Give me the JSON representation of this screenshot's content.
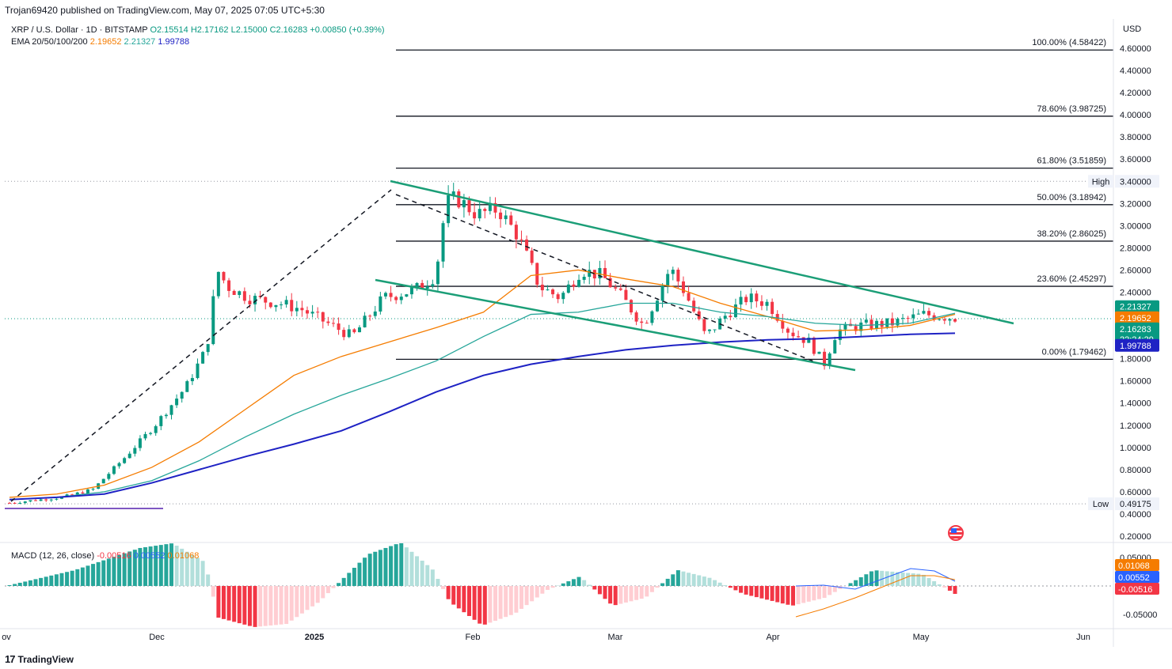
{
  "header": {
    "publisher": "Trojan69420 published on TradingView.com, May 07, 2025 07:05 UTC+5:30",
    "symbol": "XRP / U.S. Dollar · 1D · BITSTAMP",
    "open": "O2.15514",
    "high": "H2.17162",
    "low": "L2.15000",
    "close": "C2.16283",
    "change": "+0.00850 (+0.39%)",
    "ema_label": "EMA 20/50/100/200",
    "ema20": "2.19652",
    "ema50": "2.21327",
    "ema100": "1.99788",
    "currency": "USD"
  },
  "macd": {
    "label": "MACD (12, 26, close)",
    "hist": "-0.00516",
    "macd": "0.00552",
    "signal": "0.01068"
  },
  "branding": {
    "logo_text": "TradingView"
  },
  "colors": {
    "up": "#089981",
    "down": "#f23645",
    "ema20": "#f57c00",
    "ema50": "#26a69a",
    "ema100": "#089981",
    "ema200": "#1e22c4",
    "channel": "#1b9e77",
    "macd_line": "#2962ff",
    "signal_line": "#f57c00"
  },
  "chart_data": {
    "type": "candlestick",
    "x_axis": {
      "tick_labels": [
        "ov",
        "Dec",
        "2025",
        "Feb",
        "Mar",
        "Apr",
        "May",
        "Jun"
      ]
    },
    "y_axis": {
      "tick_labels": [
        "4.60000",
        "4.40000",
        "4.20000",
        "4.00000",
        "3.80000",
        "3.60000",
        "3.40000",
        "3.20000",
        "3.00000",
        "2.80000",
        "2.60000",
        "2.40000",
        "2.20000",
        "2.00000",
        "1.80000",
        "1.60000",
        "1.40000",
        "1.20000",
        "1.00000",
        "0.80000",
        "0.60000",
        "0.40000",
        "0.20000"
      ],
      "range": [
        0.15,
        4.7
      ]
    },
    "fibonacci": [
      {
        "label": "100.00% (4.58422)",
        "value": 4.58422
      },
      {
        "label": "78.60% (3.98725)",
        "value": 3.98725
      },
      {
        "label": "61.80% (3.51859)",
        "value": 3.51859
      },
      {
        "label": "50.00% (3.18942)",
        "value": 3.18942
      },
      {
        "label": "38.20% (2.86025)",
        "value": 2.86025
      },
      {
        "label": "23.60% (2.45297)",
        "value": 2.45297
      },
      {
        "label": "0.00% (1.79462)",
        "value": 1.79462
      }
    ],
    "price_badges": [
      {
        "label": "2.21327",
        "value": 2.27,
        "color": "#089981"
      },
      {
        "label": "2.19652",
        "value": 2.17,
        "color": "#f57c00"
      },
      {
        "label": "2.16283",
        "value": 2.07,
        "color": "#089981",
        "sub": "22:24:29"
      },
      {
        "label": "1.99788",
        "value": 1.92,
        "color": "#1e22c4"
      }
    ],
    "high_marker": {
      "tag": "High",
      "label": "3.40000",
      "value": 3.4
    },
    "low_marker": {
      "tag": "Low",
      "label": "0.49175",
      "value": 0.49175
    },
    "macd_axis": {
      "tick_labels": [
        "0.05000",
        "-0.05000"
      ],
      "badges": [
        {
          "label": "0.01068",
          "color": "#f57c00"
        },
        {
          "label": "0.00552",
          "color": "#2962ff"
        },
        {
          "label": "-0.00516",
          "color": "#f23645"
        }
      ]
    },
    "ema20": [
      [
        0,
        0.55
      ],
      [
        20,
        0.58
      ],
      [
        40,
        0.66
      ],
      [
        60,
        0.82
      ],
      [
        80,
        1.05
      ],
      [
        100,
        1.35
      ],
      [
        120,
        1.65
      ],
      [
        140,
        1.82
      ],
      [
        160,
        1.95
      ],
      [
        180,
        2.08
      ],
      [
        200,
        2.22
      ],
      [
        220,
        2.55
      ],
      [
        240,
        2.6
      ],
      [
        260,
        2.52
      ],
      [
        280,
        2.45
      ],
      [
        300,
        2.3
      ],
      [
        320,
        2.18
      ],
      [
        340,
        2.05
      ],
      [
        360,
        2.06
      ],
      [
        380,
        2.1
      ],
      [
        399,
        2.2
      ]
    ],
    "ema50": [
      [
        0,
        0.53
      ],
      [
        20,
        0.55
      ],
      [
        40,
        0.6
      ],
      [
        60,
        0.7
      ],
      [
        80,
        0.88
      ],
      [
        100,
        1.1
      ],
      [
        120,
        1.3
      ],
      [
        140,
        1.47
      ],
      [
        160,
        1.62
      ],
      [
        180,
        1.78
      ],
      [
        200,
        2.0
      ],
      [
        220,
        2.2
      ],
      [
        240,
        2.22
      ],
      [
        260,
        2.3
      ],
      [
        280,
        2.3
      ],
      [
        300,
        2.22
      ],
      [
        320,
        2.18
      ],
      [
        340,
        2.12
      ],
      [
        360,
        2.1
      ],
      [
        380,
        2.12
      ],
      [
        399,
        2.21
      ]
    ],
    "ema200": [
      [
        0,
        0.53
      ],
      [
        20,
        0.55
      ],
      [
        40,
        0.58
      ],
      [
        60,
        0.68
      ],
      [
        80,
        0.8
      ],
      [
        100,
        0.92
      ],
      [
        120,
        1.03
      ],
      [
        140,
        1.15
      ],
      [
        160,
        1.32
      ],
      [
        180,
        1.5
      ],
      [
        200,
        1.65
      ],
      [
        220,
        1.75
      ],
      [
        240,
        1.82
      ],
      [
        260,
        1.88
      ],
      [
        280,
        1.92
      ],
      [
        300,
        1.95
      ],
      [
        320,
        1.97
      ],
      [
        340,
        1.98
      ],
      [
        360,
        2.0
      ],
      [
        380,
        2.02
      ],
      [
        399,
        2.03
      ]
    ],
    "macd_series": {
      "hist_up_from": 0,
      "hist_dn_from": 84
    }
  }
}
